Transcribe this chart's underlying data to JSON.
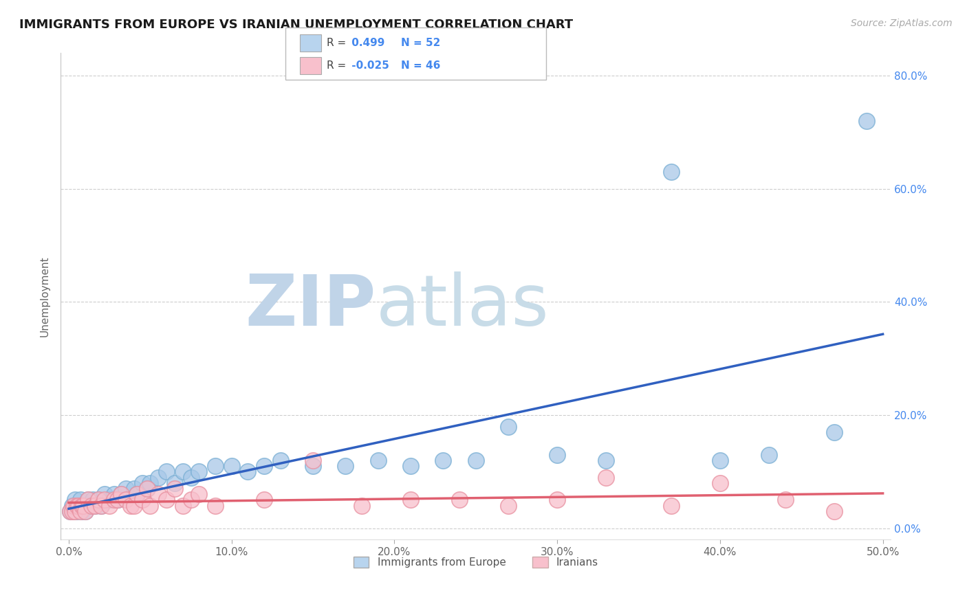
{
  "title": "IMMIGRANTS FROM EUROPE VS IRANIAN UNEMPLOYMENT CORRELATION CHART",
  "source": "Source: ZipAtlas.com",
  "ylabel": "Unemployment",
  "legend_bottom": [
    "Immigrants from Europe",
    "Iranians"
  ],
  "series": [
    {
      "label": "Immigrants from Europe",
      "R": 0.499,
      "N": 52,
      "color": "#a8c8e8",
      "edge_color": "#7aafd4",
      "trend_color": "#3060c0",
      "x": [
        0.001,
        0.002,
        0.003,
        0.004,
        0.005,
        0.006,
        0.007,
        0.008,
        0.009,
        0.01,
        0.012,
        0.013,
        0.015,
        0.016,
        0.018,
        0.02,
        0.022,
        0.025,
        0.028,
        0.03,
        0.032,
        0.035,
        0.04,
        0.042,
        0.045,
        0.048,
        0.05,
        0.055,
        0.06,
        0.065,
        0.07,
        0.075,
        0.08,
        0.09,
        0.1,
        0.11,
        0.12,
        0.13,
        0.15,
        0.17,
        0.19,
        0.21,
        0.23,
        0.25,
        0.27,
        0.3,
        0.33,
        0.37,
        0.4,
        0.43,
        0.47,
        0.49
      ],
      "y": [
        0.03,
        0.04,
        0.03,
        0.05,
        0.03,
        0.04,
        0.05,
        0.03,
        0.04,
        0.03,
        0.05,
        0.04,
        0.05,
        0.04,
        0.05,
        0.04,
        0.06,
        0.05,
        0.06,
        0.05,
        0.06,
        0.07,
        0.07,
        0.06,
        0.08,
        0.07,
        0.08,
        0.09,
        0.1,
        0.08,
        0.1,
        0.09,
        0.1,
        0.11,
        0.11,
        0.1,
        0.11,
        0.12,
        0.11,
        0.11,
        0.12,
        0.11,
        0.12,
        0.12,
        0.18,
        0.13,
        0.12,
        0.63,
        0.12,
        0.13,
        0.17,
        0.72
      ]
    },
    {
      "label": "Iranians",
      "R": -0.025,
      "N": 46,
      "color": "#f8c0cc",
      "edge_color": "#e890a0",
      "trend_color": "#e06070",
      "x": [
        0.001,
        0.002,
        0.003,
        0.004,
        0.005,
        0.006,
        0.007,
        0.008,
        0.009,
        0.01,
        0.012,
        0.014,
        0.016,
        0.018,
        0.02,
        0.022,
        0.025,
        0.028,
        0.03,
        0.032,
        0.035,
        0.038,
        0.04,
        0.042,
        0.045,
        0.048,
        0.05,
        0.055,
        0.06,
        0.065,
        0.07,
        0.075,
        0.08,
        0.09,
        0.12,
        0.15,
        0.18,
        0.21,
        0.24,
        0.27,
        0.3,
        0.33,
        0.37,
        0.4,
        0.44,
        0.47
      ],
      "y": [
        0.03,
        0.03,
        0.04,
        0.03,
        0.04,
        0.04,
        0.03,
        0.04,
        0.04,
        0.03,
        0.05,
        0.04,
        0.04,
        0.05,
        0.04,
        0.05,
        0.04,
        0.05,
        0.05,
        0.06,
        0.05,
        0.04,
        0.04,
        0.06,
        0.05,
        0.07,
        0.04,
        0.06,
        0.05,
        0.07,
        0.04,
        0.05,
        0.06,
        0.04,
        0.05,
        0.12,
        0.04,
        0.05,
        0.05,
        0.04,
        0.05,
        0.09,
        0.04,
        0.08,
        0.05,
        0.03
      ]
    }
  ],
  "xlim": [
    -0.005,
    0.505
  ],
  "ylim": [
    -0.02,
    0.84
  ],
  "xticks": [
    0.0,
    0.1,
    0.2,
    0.3,
    0.4,
    0.5
  ],
  "yticks": [
    0.0,
    0.2,
    0.4,
    0.6,
    0.8
  ],
  "ytick_labels": [
    "0.0%",
    "20.0%",
    "40.0%",
    "60.0%",
    "80.0%"
  ],
  "xtick_labels": [
    "0.0%",
    "10.0%",
    "20.0%",
    "30.0%",
    "40.0%",
    "50.0%"
  ],
  "watermark_zip_color": "#c0d4e8",
  "watermark_atlas_color": "#c8dce8",
  "bg_color": "#ffffff",
  "grid_color": "#c8c8c8",
  "title_color": "#1a1a1a",
  "legend_box_colors": [
    "#b8d4ee",
    "#f8c0cc"
  ],
  "R_color": "#4488ee",
  "marker_size": 9,
  "trend_linewidth": 2.5
}
